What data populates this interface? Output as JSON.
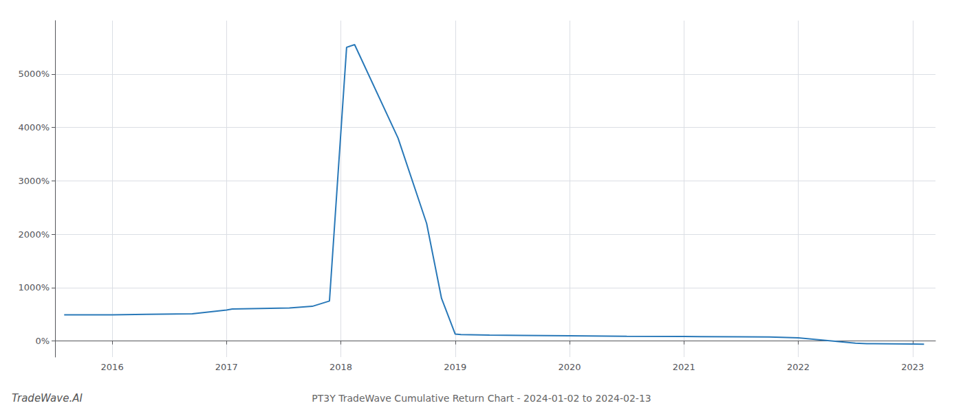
{
  "chart_data": {
    "type": "line",
    "title": "PT3Y TradeWave Cumulative Return Chart - 2024-01-02 to 2024-02-13",
    "annotations": [
      "TradeWave.AI"
    ],
    "x": [
      2015.58,
      2016.0,
      2016.3,
      2016.7,
      2017.0,
      2017.05,
      2017.55,
      2017.75,
      2017.9,
      2018.05,
      2018.12,
      2018.5,
      2018.75,
      2018.88,
      2019.0,
      2019.05,
      2019.3,
      2019.6,
      2020.0,
      2020.5,
      2021.0,
      2021.5,
      2021.75,
      2022.0,
      2022.5,
      2022.6,
      2023.0,
      2023.1
    ],
    "values": [
      490,
      490,
      500,
      510,
      580,
      600,
      620,
      650,
      750,
      5500,
      5550,
      3800,
      2200,
      800,
      130,
      120,
      110,
      105,
      100,
      90,
      85,
      80,
      75,
      60,
      -40,
      -50,
      -55,
      -60
    ],
    "color": "#2878b8",
    "xlim": [
      2015.5,
      2023.2
    ],
    "xticks": [
      2016,
      2017,
      2018,
      2019,
      2020,
      2021,
      2022,
      2023
    ],
    "ylim": [
      -300,
      6000
    ],
    "yticks": [
      {
        "value": 0,
        "label": "0%"
      },
      {
        "value": 1000,
        "label": "1000%"
      },
      {
        "value": 2000,
        "label": "2000%"
      },
      {
        "value": 3000,
        "label": "3000%"
      },
      {
        "value": 4000,
        "label": "4000%"
      },
      {
        "value": 5000,
        "label": "5000%"
      }
    ],
    "grid": true
  }
}
